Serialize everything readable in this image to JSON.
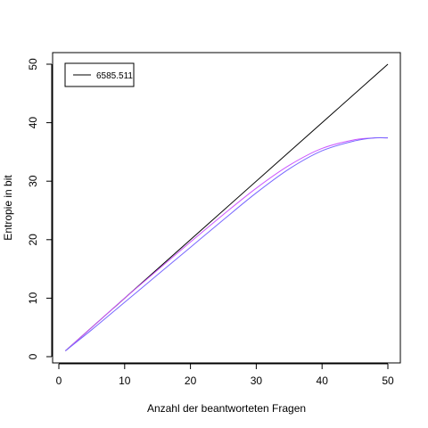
{
  "chart_data": {
    "type": "line",
    "title": "",
    "xlabel": "Anzahl der beantworteten Fragen",
    "ylabel": "Entropie in bit",
    "xlim": [
      1,
      50
    ],
    "ylim": [
      0,
      50
    ],
    "x_ticks": [
      0,
      10,
      20,
      30,
      40,
      50
    ],
    "y_ticks": [
      0,
      10,
      20,
      30,
      40,
      50
    ],
    "grid": false,
    "legend": {
      "placement": "top-left",
      "entries": [
        "6585.511"
      ]
    },
    "series": [
      {
        "name": "6585.511",
        "color": "#000000",
        "x": [
          1,
          50
        ],
        "y": [
          1,
          50
        ]
      },
      {
        "color": "#cc55ff",
        "x": [
          1,
          5,
          10,
          15,
          20,
          25,
          30,
          35,
          40,
          45,
          48,
          50
        ],
        "y": [
          1,
          5.0,
          10.0,
          14.8,
          19.6,
          24.3,
          28.8,
          32.7,
          35.6,
          37.1,
          37.4,
          37.4
        ]
      },
      {
        "color": "#7766ff",
        "x": [
          1,
          5,
          10,
          15,
          20,
          25,
          30,
          35,
          40,
          45,
          48,
          50
        ],
        "y": [
          1,
          4.6,
          9.3,
          14.0,
          18.7,
          23.4,
          28.0,
          32.1,
          35.2,
          36.9,
          37.4,
          37.4
        ]
      }
    ]
  }
}
